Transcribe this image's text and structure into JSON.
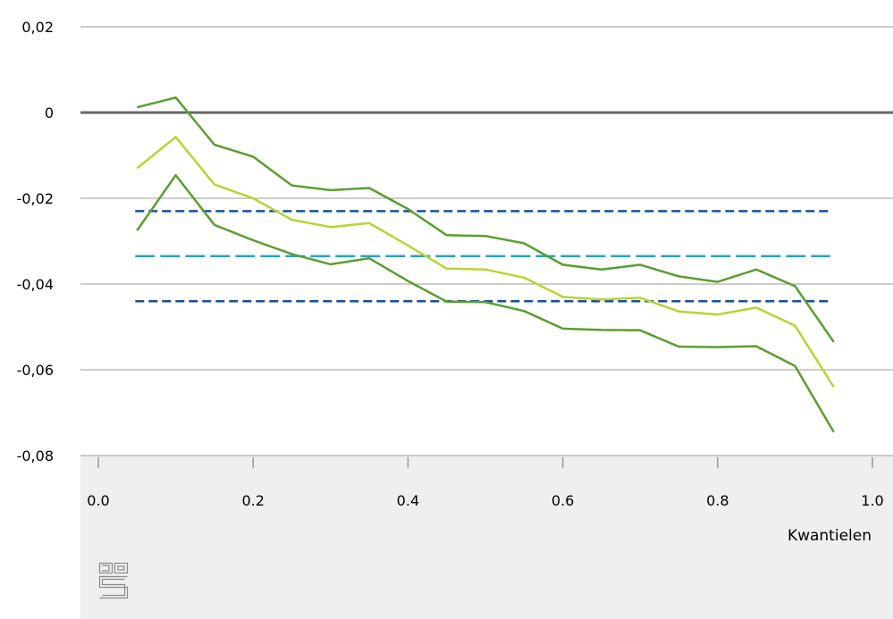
{
  "chart_data": {
    "type": "line",
    "title": "",
    "xlabel": "Kwantielen",
    "ylabel": "",
    "xlim": [
      0.0,
      1.0
    ],
    "ylim": [
      -0.08,
      0.02
    ],
    "x_ticks": [
      0.0,
      0.2,
      0.4,
      0.6,
      0.8,
      1.0
    ],
    "x_tick_labels": [
      "0.0",
      "0.2",
      "0.4",
      "0.6",
      "0.8",
      "1.0"
    ],
    "y_ticks": [
      0.02,
      0,
      -0.02,
      -0.04,
      -0.06,
      -0.08
    ],
    "y_tick_labels": [
      "0,02",
      "0",
      "-0,02",
      "-0,04",
      "-0,06",
      "-0,08"
    ],
    "grid": "horizontal",
    "legend": "none",
    "x": [
      0.05,
      0.1,
      0.15,
      0.2,
      0.25,
      0.3,
      0.35,
      0.4,
      0.45,
      0.5,
      0.55,
      0.6,
      0.65,
      0.7,
      0.75,
      0.8,
      0.85,
      0.9,
      0.95
    ],
    "series": [
      {
        "color": "#5a9e2f",
        "style": "solid",
        "values": [
          0.0012,
          0.0035,
          -0.0075,
          -0.0103,
          -0.017,
          -0.0181,
          -0.0176,
          -0.0225,
          -0.0286,
          -0.0288,
          -0.0305,
          -0.0355,
          -0.0366,
          -0.0355,
          -0.0382,
          -0.0395,
          -0.0366,
          -0.0405,
          -0.0535
        ]
      },
      {
        "color": "#b8d432",
        "style": "solid",
        "values": [
          -0.013,
          -0.0057,
          -0.0168,
          -0.02,
          -0.025,
          -0.0267,
          -0.0258,
          -0.031,
          -0.0364,
          -0.0366,
          -0.0385,
          -0.043,
          -0.0436,
          -0.0432,
          -0.0464,
          -0.0471,
          -0.0455,
          -0.0497,
          -0.064
        ]
      },
      {
        "color": "#5a9e2f",
        "style": "solid",
        "values": [
          -0.0275,
          -0.0146,
          -0.0262,
          -0.0298,
          -0.033,
          -0.0354,
          -0.034,
          -0.0393,
          -0.0441,
          -0.0442,
          -0.0463,
          -0.0504,
          -0.0507,
          -0.0508,
          -0.0546,
          -0.0547,
          -0.0545,
          -0.0591,
          -0.0745
        ]
      }
    ],
    "reference_lines": [
      {
        "y": -0.023,
        "color": "#1a4f9c",
        "style": "short-dash"
      },
      {
        "y": -0.0335,
        "color": "#27a3c9",
        "style": "long-dash"
      },
      {
        "y": -0.044,
        "color": "#1a4f9c",
        "style": "short-dash"
      }
    ],
    "zero_line_color": "#666666",
    "grid_color": "#999999",
    "footer_background": "#efefef",
    "logo": "cbs-logo"
  }
}
